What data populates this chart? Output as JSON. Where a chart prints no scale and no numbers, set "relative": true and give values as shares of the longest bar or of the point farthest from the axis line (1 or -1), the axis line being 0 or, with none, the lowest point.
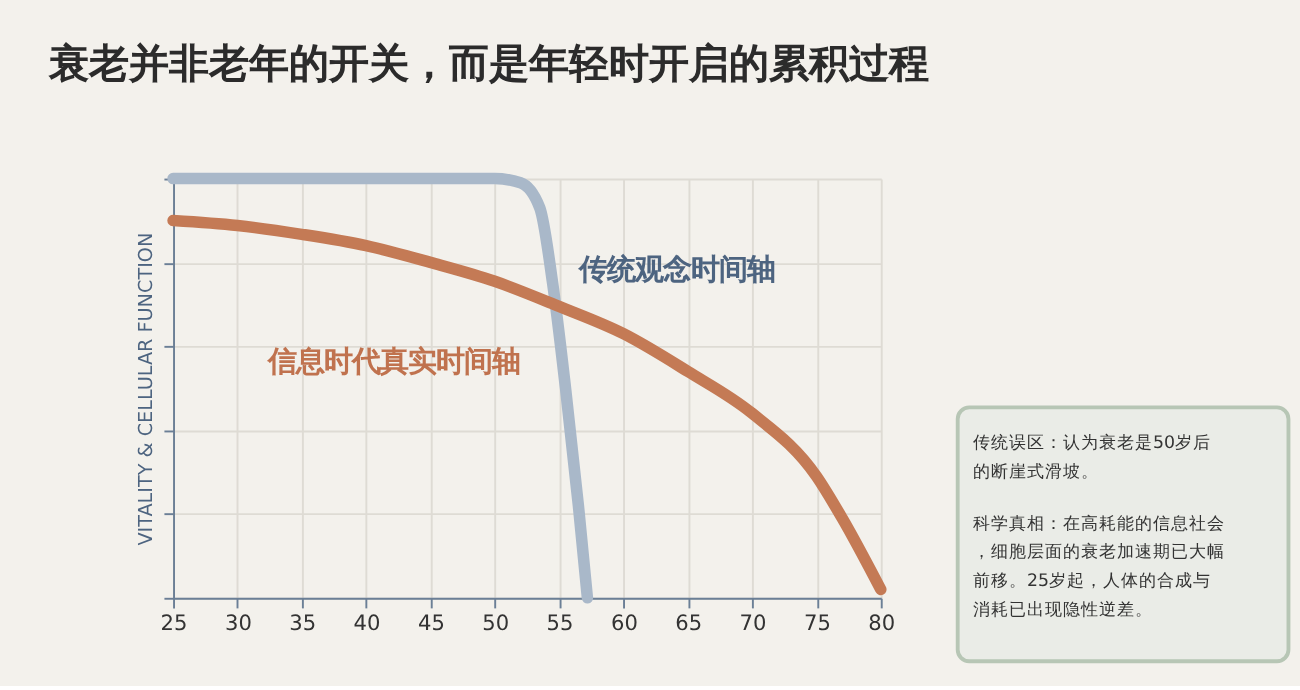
{
  "chart_data": {
    "type": "line",
    "title": "衰老并非老年的开关，而是年轻时开启的累积过程",
    "ylabel": "VITALITY & CELLULAR FUNCTION",
    "relative": true,
    "xlim": [
      25,
      80
    ],
    "xticks": [
      25,
      30,
      35,
      40,
      45,
      50,
      55,
      60,
      65,
      70,
      75,
      80
    ],
    "grid": true,
    "marker": "none",
    "line_style": "solid",
    "series": [
      {
        "name": "传统观念时间轴",
        "color": "#a9b8c9",
        "x": [
          25,
          50,
          52,
          53.5,
          54.5,
          55.5,
          56.5,
          57.2
        ],
        "values": [
          1,
          1,
          0.99,
          0.93,
          0.75,
          0.5,
          0.22,
          0
        ]
      },
      {
        "name": "信息时代真实时间轴",
        "color": "#c47a55",
        "x": [
          25,
          30,
          35,
          40,
          45,
          50,
          55,
          60,
          65,
          70,
          75,
          77,
          80
        ],
        "values": [
          0.9,
          0.888,
          0.867,
          0.84,
          0.8,
          0.755,
          0.695,
          0.63,
          0.54,
          0.44,
          0.29,
          0.19,
          0.02
        ]
      }
    ],
    "annotations": [
      "传统误区：认为衰老是50岁后的断崖式滑坡。",
      "科学真相：在高耗能的信息社会，细胞层面的衰老加速期已大幅前移。25岁起，人体的合成与消耗已出现隐性逆差。"
    ]
  }
}
